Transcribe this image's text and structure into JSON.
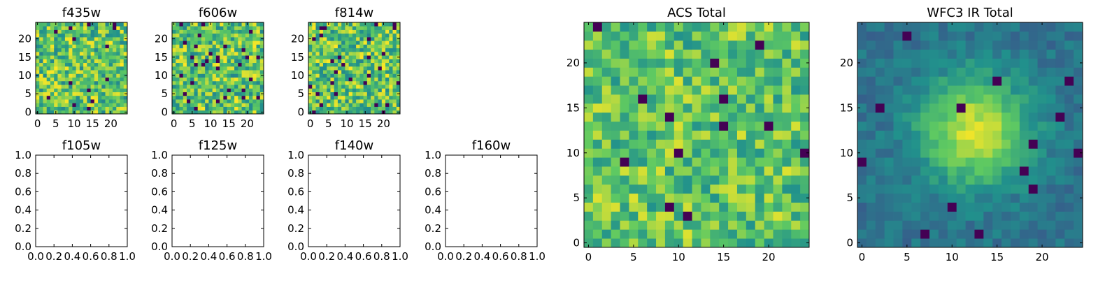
{
  "colormap": [
    "#440154",
    "#3b528b",
    "#21918c",
    "#5ec962",
    "#fde725"
  ],
  "chart_data": [
    {
      "type": "heatmap",
      "title": "f435w",
      "grid_size": [
        25,
        25
      ],
      "xlim": [
        -0.5,
        24.5
      ],
      "ylim": [
        -0.5,
        24.5
      ],
      "xticks": [
        0,
        5,
        10,
        15,
        20
      ],
      "yticks": [
        0,
        5,
        10,
        15,
        20
      ],
      "pattern": "noise",
      "seed": 11,
      "spike_fraction": 0.03
    },
    {
      "type": "heatmap",
      "title": "f606w",
      "grid_size": [
        25,
        25
      ],
      "xlim": [
        -0.5,
        24.5
      ],
      "ylim": [
        -0.5,
        24.5
      ],
      "xticks": [
        0,
        5,
        10,
        15,
        20
      ],
      "yticks": [
        0,
        5,
        10,
        15,
        20
      ],
      "pattern": "noise",
      "seed": 23,
      "spike_fraction": 0.04
    },
    {
      "type": "heatmap",
      "title": "f814w",
      "grid_size": [
        25,
        25
      ],
      "xlim": [
        -0.5,
        24.5
      ],
      "ylim": [
        -0.5,
        24.5
      ],
      "xticks": [
        0,
        5,
        10,
        15,
        20
      ],
      "yticks": [
        0,
        5,
        10,
        15,
        20
      ],
      "pattern": "noise",
      "seed": 37,
      "spike_fraction": 0.04
    },
    {
      "type": "empty",
      "title": "f105w",
      "xlim": [
        0,
        1
      ],
      "ylim": [
        0,
        1
      ],
      "xticks": [
        0.0,
        0.2,
        0.4,
        0.6,
        0.8,
        1.0
      ],
      "yticks": [
        0.0,
        0.2,
        0.4,
        0.6,
        0.8,
        1.0
      ]
    },
    {
      "type": "empty",
      "title": "f125w",
      "xlim": [
        0,
        1
      ],
      "ylim": [
        0,
        1
      ],
      "xticks": [
        0.0,
        0.2,
        0.4,
        0.6,
        0.8,
        1.0
      ],
      "yticks": [
        0.0,
        0.2,
        0.4,
        0.6,
        0.8,
        1.0
      ]
    },
    {
      "type": "empty",
      "title": "f140w",
      "xlim": [
        0,
        1
      ],
      "ylim": [
        0,
        1
      ],
      "xticks": [
        0.0,
        0.2,
        0.4,
        0.6,
        0.8,
        1.0
      ],
      "yticks": [
        0.0,
        0.2,
        0.4,
        0.6,
        0.8,
        1.0
      ]
    },
    {
      "type": "empty",
      "title": "f160w",
      "xlim": [
        0,
        1
      ],
      "ylim": [
        0,
        1
      ],
      "xticks": [
        0.0,
        0.2,
        0.4,
        0.6,
        0.8,
        1.0
      ],
      "yticks": [
        0.0,
        0.2,
        0.4,
        0.6,
        0.8,
        1.0
      ]
    },
    {
      "type": "heatmap",
      "title": "ACS Total",
      "grid_size": [
        25,
        25
      ],
      "xlim": [
        -0.5,
        24.5
      ],
      "ylim": [
        -0.5,
        24.5
      ],
      "xticks": [
        0,
        5,
        10,
        15,
        20
      ],
      "yticks": [
        0,
        5,
        10,
        15,
        20
      ],
      "pattern": "noise-high",
      "seed": 53,
      "spike_fraction": 0.025
    },
    {
      "type": "heatmap",
      "title": "WFC3 IR Total",
      "grid_size": [
        25,
        25
      ],
      "xlim": [
        -0.5,
        24.5
      ],
      "ylim": [
        -0.5,
        24.5
      ],
      "xticks": [
        0,
        5,
        10,
        15,
        20
      ],
      "yticks": [
        0,
        5,
        10,
        15,
        20
      ],
      "pattern": "source",
      "source_center": [
        12.5,
        12.5
      ],
      "seed": 71,
      "spike_fraction": 0.02
    }
  ]
}
